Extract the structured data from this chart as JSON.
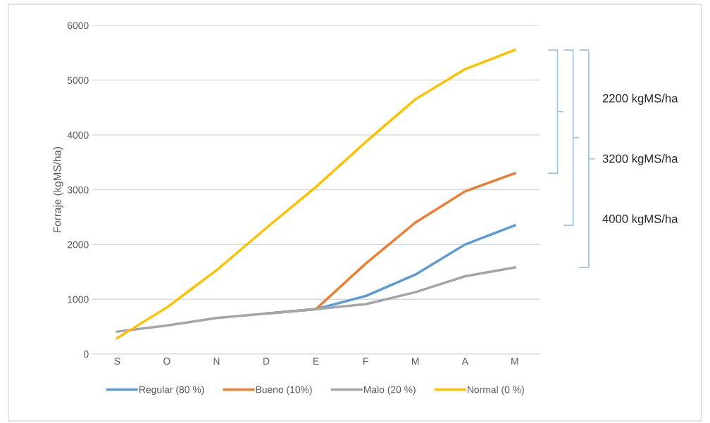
{
  "chart_data": {
    "type": "line",
    "ylabel": "Forraje (kgMS/ha)",
    "categories": [
      "S",
      "O",
      "N",
      "D",
      "E",
      "F",
      "M",
      "A",
      "M"
    ],
    "series": [
      {
        "name": "Regular (80 %)",
        "color": "#5b9bd5",
        "values": [
          null,
          null,
          null,
          740,
          820,
          1060,
          1450,
          2000,
          2350
        ]
      },
      {
        "name": "Bueno (10%)",
        "color": "#ed7d31",
        "values": [
          null,
          null,
          null,
          740,
          820,
          1650,
          2400,
          2970,
          3300
        ]
      },
      {
        "name": "Malo (20 %)",
        "color": "#a5a5a5",
        "values": [
          410,
          520,
          660,
          740,
          820,
          910,
          1130,
          1420,
          1580
        ]
      },
      {
        "name": "Normal (0 %)",
        "color": "#ffc000",
        "values": [
          290,
          850,
          1530,
          2300,
          3050,
          3870,
          4650,
          5200,
          5550
        ]
      }
    ],
    "ylim": [
      0,
      6000
    ],
    "yticks": [
      0,
      1000,
      2000,
      3000,
      4000,
      5000,
      6000
    ],
    "grid": "y",
    "legend": "bottom",
    "marker": "none",
    "line_style": "solid",
    "annotations": [
      "2200 kgMS/ha",
      "3200 kgMS/ha",
      "4000 kgMS/ha"
    ]
  }
}
